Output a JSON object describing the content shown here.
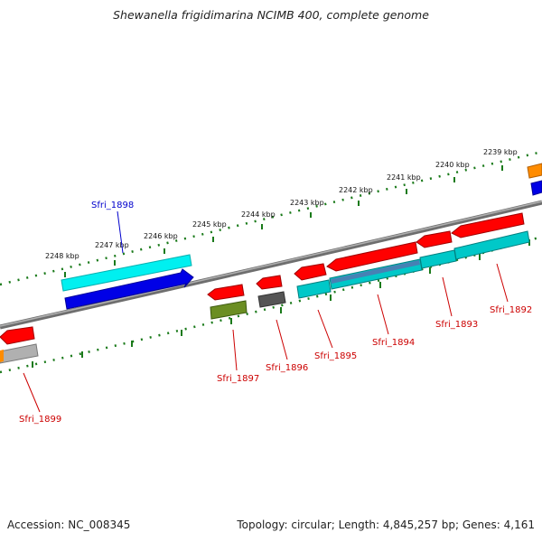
{
  "title": "Shewanella frigidimarina NCIMB 400, complete genome",
  "footer": {
    "accession": "Accession: NC_008345",
    "topology": "Topology: circular; Length: 4,845,257 bp; Genes: 4,161"
  },
  "scale_labels": [
    "2239 kbp",
    "2240 kbp",
    "2241 kbp",
    "2242 kbp",
    "2243 kbp",
    "2244 kbp",
    "2245 kbp",
    "2246 kbp",
    "2247 kbp",
    "2248 kbp"
  ],
  "genes": [
    {
      "name": "Sfri_1892",
      "color": "#cc0000"
    },
    {
      "name": "Sfri_1893",
      "color": "#cc0000"
    },
    {
      "name": "Sfri_1894",
      "color": "#cc0000"
    },
    {
      "name": "Sfri_1895",
      "color": "#cc0000"
    },
    {
      "name": "Sfri_1896",
      "color": "#cc0000"
    },
    {
      "name": "Sfri_1897",
      "color": "#cc0000"
    },
    {
      "name": "Sfri_1898",
      "color": "#0000cc"
    },
    {
      "name": "Sfri_1899",
      "color": "#cc0000"
    }
  ],
  "colors": {
    "backbone": "#808080",
    "scale_dots": "#1a7a1a",
    "cds_red": "#ff0000",
    "cyan": "#00e0e0",
    "teal": "#00bfbf",
    "blue": "#0000e0",
    "olive": "#6b8e23",
    "gray_dark": "#555555",
    "gray_light": "#b0b0b0",
    "orange": "#ff8c00",
    "steel": "#4682b4"
  }
}
